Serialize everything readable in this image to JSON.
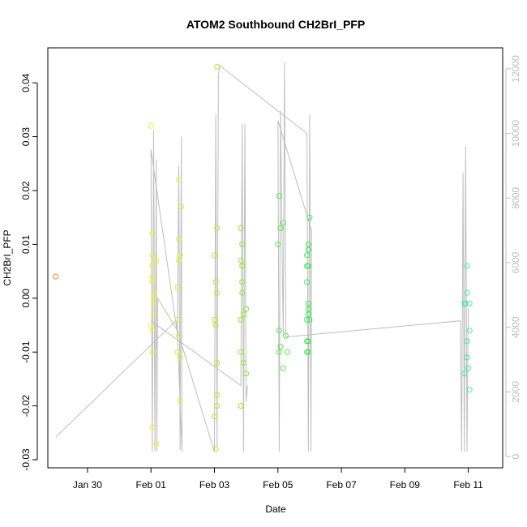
{
  "chart_data": {
    "type": "scatter",
    "title": "ATOM2 Southbound CH2BrI_PFP",
    "xlabel": "Date",
    "ylabel": "CH2BrI_PFP",
    "xlim": [
      "2017-01-28T18:00",
      "2017-02-12T02:00"
    ],
    "ylim": [
      -0.0315,
      0.0465
    ],
    "y2lim": [
      -350,
      12650
    ],
    "x_ticks": [
      {
        "date": "2017-01-30",
        "label": "Jan 30"
      },
      {
        "date": "2017-02-01",
        "label": "Feb 01"
      },
      {
        "date": "2017-02-03",
        "label": "Feb 03"
      },
      {
        "date": "2017-02-05",
        "label": "Feb 05"
      },
      {
        "date": "2017-02-07",
        "label": "Feb 07"
      },
      {
        "date": "2017-02-09",
        "label": "Feb 09"
      },
      {
        "date": "2017-02-11",
        "label": "Feb 11"
      }
    ],
    "y_ticks": [
      {
        "value": -0.03,
        "label": "-0.03"
      },
      {
        "value": -0.02,
        "label": "-0.02"
      },
      {
        "value": -0.01,
        "label": "-0.01"
      },
      {
        "value": 0.0,
        "label": "0.00"
      },
      {
        "value": 0.01,
        "label": "0.01"
      },
      {
        "value": 0.02,
        "label": "0.02"
      },
      {
        "value": 0.03,
        "label": "0.03"
      },
      {
        "value": 0.04,
        "label": "0.04"
      }
    ],
    "y2_ticks": [
      {
        "value": 0,
        "label": "0"
      },
      {
        "value": 2000,
        "label": "2000"
      },
      {
        "value": 4000,
        "label": "4000"
      },
      {
        "value": 6000,
        "label": "6000"
      },
      {
        "value": 8000,
        "label": "8000"
      },
      {
        "value": 10000,
        "label": "10000"
      },
      {
        "value": 12000,
        "label": "12000"
      }
    ],
    "grid": false,
    "series": [
      {
        "kind": "points",
        "axis": "left",
        "points": [
          [
            "2017-01-29T00:00",
            0.004,
            "#ff7f2a"
          ],
          [
            "2017-02-01T00:00",
            0.032,
            "#e6f03c"
          ],
          [
            "2017-02-01T01:00",
            0.008,
            "#e6f03c"
          ],
          [
            "2017-02-01T01:00",
            0.012,
            "#e6f03c"
          ],
          [
            "2017-02-01T01:00",
            0.006,
            "#e6f03c"
          ],
          [
            "2017-02-01T01:00",
            0.004,
            "#e6f03c"
          ],
          [
            "2017-02-01T01:00",
            0.003,
            "#e6f03c"
          ],
          [
            "2017-02-01T02:00",
            0.001,
            "#e6f03c"
          ],
          [
            "2017-02-01T02:00",
            0.0,
            "#e6f03c"
          ],
          [
            "2017-02-01T02:00",
            -0.001,
            "#e6f03c"
          ],
          [
            "2017-02-01T02:00",
            -0.003,
            "#e6f03c"
          ],
          [
            "2017-02-01T00:00",
            -0.005,
            "#e6f03c"
          ],
          [
            "2017-02-01T01:00",
            -0.006,
            "#e6f03c"
          ],
          [
            "2017-02-01T01:00",
            -0.01,
            "#e6f03c"
          ],
          [
            "2017-02-01T01:00",
            -0.024,
            "#e6f03c"
          ],
          [
            "2017-02-01T04:00",
            -0.027,
            "#e6f03c"
          ],
          [
            "2017-02-01T04:00",
            0.007,
            "#e6f03c"
          ],
          [
            "2017-02-01T21:00",
            0.022,
            "#d8f035"
          ],
          [
            "2017-02-01T23:00",
            0.017,
            "#d8f035"
          ],
          [
            "2017-02-01T21:00",
            0.011,
            "#d8f035"
          ],
          [
            "2017-02-01T22:00",
            0.008,
            "#d8f035"
          ],
          [
            "2017-02-01T21:00",
            0.007,
            "#d8f035"
          ],
          [
            "2017-02-01T20:00",
            0.002,
            "#d8f035"
          ],
          [
            "2017-02-01T20:00",
            -0.004,
            "#d8f035"
          ],
          [
            "2017-02-01T21:00",
            -0.007,
            "#d8f035"
          ],
          [
            "2017-02-01T20:00",
            -0.01,
            "#d8f035"
          ],
          [
            "2017-02-01T22:00",
            -0.011,
            "#d8f035"
          ],
          [
            "2017-02-01T22:00",
            -0.019,
            "#d8f035"
          ],
          [
            "2017-02-03T02:00",
            0.043,
            "#a8ec30"
          ],
          [
            "2017-02-03T02:00",
            0.013,
            "#a8ec30"
          ],
          [
            "2017-02-03T00:00",
            0.008,
            "#a8ec30"
          ],
          [
            "2017-02-03T01:00",
            0.003,
            "#a8ec30"
          ],
          [
            "2017-02-03T02:00",
            0.001,
            "#a8ec30"
          ],
          [
            "2017-02-03T00:00",
            -0.004,
            "#a8ec30"
          ],
          [
            "2017-02-03T01:00",
            -0.005,
            "#a8ec30"
          ],
          [
            "2017-02-03T02:00",
            -0.012,
            "#a8ec30"
          ],
          [
            "2017-02-03T02:00",
            -0.018,
            "#a8ec30"
          ],
          [
            "2017-02-03T02:00",
            -0.02,
            "#a8ec30"
          ],
          [
            "2017-02-03T00:00",
            -0.022,
            "#a8ec30"
          ],
          [
            "2017-02-03T01:00",
            -0.028,
            "#a8ec30"
          ],
          [
            "2017-02-03T20:00",
            0.013,
            "#8ae82d"
          ],
          [
            "2017-02-03T21:00",
            0.01,
            "#8ae82d"
          ],
          [
            "2017-02-03T20:00",
            0.007,
            "#8ae82d"
          ],
          [
            "2017-02-03T21:00",
            0.006,
            "#8ae82d"
          ],
          [
            "2017-02-03T21:00",
            0.003,
            "#8ae82d"
          ],
          [
            "2017-02-03T21:00",
            0.001,
            "#8ae82d"
          ],
          [
            "2017-02-04T00:00",
            -0.002,
            "#8ae82d"
          ],
          [
            "2017-02-03T22:00",
            -0.003,
            "#8ae82d"
          ],
          [
            "2017-02-03T20:00",
            -0.004,
            "#8ae82d"
          ],
          [
            "2017-02-03T20:00",
            -0.01,
            "#8ae82d"
          ],
          [
            "2017-02-03T22:00",
            -0.012,
            "#8ae82d"
          ],
          [
            "2017-02-04T00:00",
            -0.014,
            "#8ae82d"
          ],
          [
            "2017-02-03T20:00",
            -0.02,
            "#8ae82d"
          ],
          [
            "2017-02-05T01:00",
            0.019,
            "#55e44a"
          ],
          [
            "2017-02-05T04:00",
            0.014,
            "#55e44a"
          ],
          [
            "2017-02-05T02:00",
            0.013,
            "#55e44a"
          ],
          [
            "2017-02-05T00:00",
            0.01,
            "#55e44a"
          ],
          [
            "2017-02-05T01:00",
            -0.006,
            "#55e44a"
          ],
          [
            "2017-02-05T06:00",
            -0.007,
            "#55e44a"
          ],
          [
            "2017-02-05T02:00",
            -0.009,
            "#55e44a"
          ],
          [
            "2017-02-05T01:00",
            -0.01,
            "#55e44a"
          ],
          [
            "2017-02-05T07:00",
            -0.01,
            "#55e44a"
          ],
          [
            "2017-02-05T04:00",
            -0.013,
            "#55e44a"
          ],
          [
            "2017-02-06T00:00",
            0.015,
            "#3fe35a"
          ],
          [
            "2017-02-05T23:00",
            0.01,
            "#3fe35a"
          ],
          [
            "2017-02-05T23:00",
            0.009,
            "#3fe35a"
          ],
          [
            "2017-02-05T22:00",
            0.008,
            "#3fe35a"
          ],
          [
            "2017-02-05T22:00",
            0.006,
            "#3fe35a"
          ],
          [
            "2017-02-05T23:00",
            0.006,
            "#3fe35a"
          ],
          [
            "2017-02-05T22:00",
            0.003,
            "#3fe35a"
          ],
          [
            "2017-02-05T23:00",
            -0.001,
            "#3fe35a"
          ],
          [
            "2017-02-05T23:00",
            -0.002,
            "#3fe35a"
          ],
          [
            "2017-02-05T23:00",
            -0.003,
            "#3fe35a"
          ],
          [
            "2017-02-05T22:00",
            -0.004,
            "#3fe35a"
          ],
          [
            "2017-02-06T00:00",
            -0.004,
            "#3fe35a"
          ],
          [
            "2017-02-05T22:00",
            -0.008,
            "#3fe35a"
          ],
          [
            "2017-02-05T23:00",
            -0.008,
            "#3fe35a"
          ],
          [
            "2017-02-05T22:00",
            -0.01,
            "#3fe35a"
          ],
          [
            "2017-02-05T23:00",
            -0.01,
            "#3fe35a"
          ],
          [
            "2017-02-10T23:00",
            0.006,
            "#40e8a0"
          ],
          [
            "2017-02-10T23:00",
            0.001,
            "#40e8a0"
          ],
          [
            "2017-02-10T21:00",
            -0.001,
            "#40e8a0"
          ],
          [
            "2017-02-10T22:00",
            -0.001,
            "#40e8a0"
          ],
          [
            "2017-02-11T01:00",
            -0.001,
            "#40e8a0"
          ],
          [
            "2017-02-11T01:00",
            -0.006,
            "#40e8a0"
          ],
          [
            "2017-02-10T23:00",
            -0.008,
            "#40e8a0"
          ],
          [
            "2017-02-10T23:00",
            -0.011,
            "#40e8a0"
          ],
          [
            "2017-02-11T00:00",
            -0.013,
            "#40e8a0"
          ],
          [
            "2017-02-10T21:00",
            -0.014,
            "#40e8a0"
          ],
          [
            "2017-02-11T01:00",
            -0.017,
            "#40e8a0"
          ]
        ]
      },
      {
        "kind": "line",
        "axis": "right",
        "color": "#bebebe",
        "points": [
          [
            "2017-01-29T00:00",
            600
          ],
          [
            "2017-02-01T19:00",
            4200
          ],
          [
            "2017-02-01T20:00",
            3800
          ],
          [
            "2017-02-01T21:00",
            9000
          ],
          [
            "2017-02-01T22:00",
            200
          ],
          [
            "2017-02-01T23:00",
            9900
          ],
          [
            "2017-02-01T23:30",
            150
          ],
          [
            "2017-02-01T20:00",
            3800
          ],
          [
            "2017-02-01T00:00",
            9500
          ],
          [
            "2017-02-01T01:00",
            150
          ],
          [
            "2017-02-01T02:00",
            10100
          ],
          [
            "2017-02-01T03:00",
            150
          ],
          [
            "2017-02-01T04:00",
            9200
          ],
          [
            "2017-02-01T04:30",
            150
          ],
          [
            "2017-02-01T05:00",
            4900
          ],
          [
            "2017-02-01T20:00",
            3900
          ],
          [
            "2017-02-03T00:00",
            150
          ],
          [
            "2017-02-03T01:00",
            10600
          ],
          [
            "2017-02-03T02:00",
            300
          ],
          [
            "2017-02-03T03:00",
            11800
          ],
          [
            "2017-02-03T04:00",
            12100
          ],
          [
            "2017-02-05T22:00",
            10000
          ],
          [
            "2017-02-05T23:00",
            150
          ],
          [
            "2017-02-06T00:00",
            10600
          ],
          [
            "2017-02-06T01:00",
            150
          ],
          [
            "2017-02-06T01:30",
            7000
          ],
          [
            "2017-02-05T00:00",
            10400
          ],
          [
            "2017-02-05T01:00",
            150
          ],
          [
            "2017-02-05T02:00",
            10700
          ],
          [
            "2017-02-05T04:00",
            3700
          ],
          [
            "2017-02-05T05:00",
            12200
          ],
          [
            "2017-02-05T06:00",
            3700
          ],
          [
            "2017-02-10T18:00",
            4200
          ],
          [
            "2017-02-10T19:00",
            150
          ],
          [
            "2017-02-10T20:00",
            8800
          ],
          [
            "2017-02-10T21:00",
            150
          ],
          [
            "2017-02-10T22:00",
            9600
          ],
          [
            "2017-02-10T23:00",
            150
          ],
          [
            "2017-02-11T00:00",
            4600
          ]
        ]
      },
      {
        "kind": "line",
        "axis": "right",
        "color": "#bebebe",
        "points": [
          [
            "2017-02-01T00:00",
            4200
          ],
          [
            "2017-02-03T20:00",
            2200
          ],
          [
            "2017-02-03T21:00",
            10300
          ],
          [
            "2017-02-03T22:00",
            150
          ],
          [
            "2017-02-03T23:00",
            10300
          ],
          [
            "2017-02-04T00:00",
            1700
          ],
          [
            "2017-02-04T01:00",
            2200
          ]
        ]
      }
    ]
  }
}
